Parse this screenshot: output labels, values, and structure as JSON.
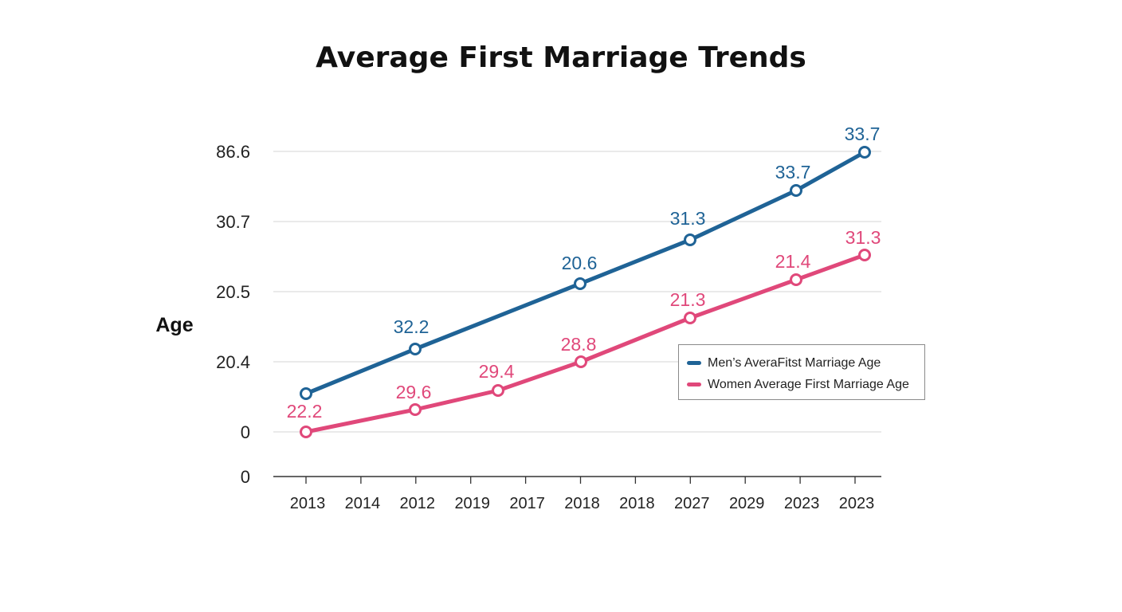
{
  "chart_data": {
    "type": "line",
    "title": "Average First Marriage Trends",
    "ylabel": "Age",
    "xlabel": "",
    "y_tick_labels": [
      "86.6",
      "30.7",
      "20.5",
      "20.4",
      "0",
      "0"
    ],
    "categories": [
      "2013",
      "2014",
      "2012",
      "2019",
      "2017",
      "2018",
      "2018",
      "2027",
      "2029",
      "2023",
      "2023"
    ],
    "series": [
      {
        "name": "Men’s AveraFitst Marriage Age",
        "color": "#1f6396",
        "points": [
          {
            "x": "2013",
            "label": ""
          },
          {
            "x": "2012",
            "label": "32.2"
          },
          {
            "x": "2018",
            "label": "20.6"
          },
          {
            "x": "2027",
            "label": "31.3"
          },
          {
            "x": "2023",
            "label": "33.7"
          },
          {
            "x": "2023",
            "label": "33.7"
          }
        ]
      },
      {
        "name": "Women Average First Marriage Age",
        "color": "#e0487a",
        "points": [
          {
            "x": "2013",
            "label": "22.2"
          },
          {
            "x": "2012",
            "label": "29.6"
          },
          {
            "x": "2017",
            "label": "29.4"
          },
          {
            "x": "2018",
            "label": "28.8"
          },
          {
            "x": "2027",
            "label": "21.3"
          },
          {
            "x": "2023",
            "label": "21.4"
          },
          {
            "x": "2023",
            "label": "31.3"
          }
        ]
      }
    ],
    "grid": true,
    "legend_position": "right"
  }
}
